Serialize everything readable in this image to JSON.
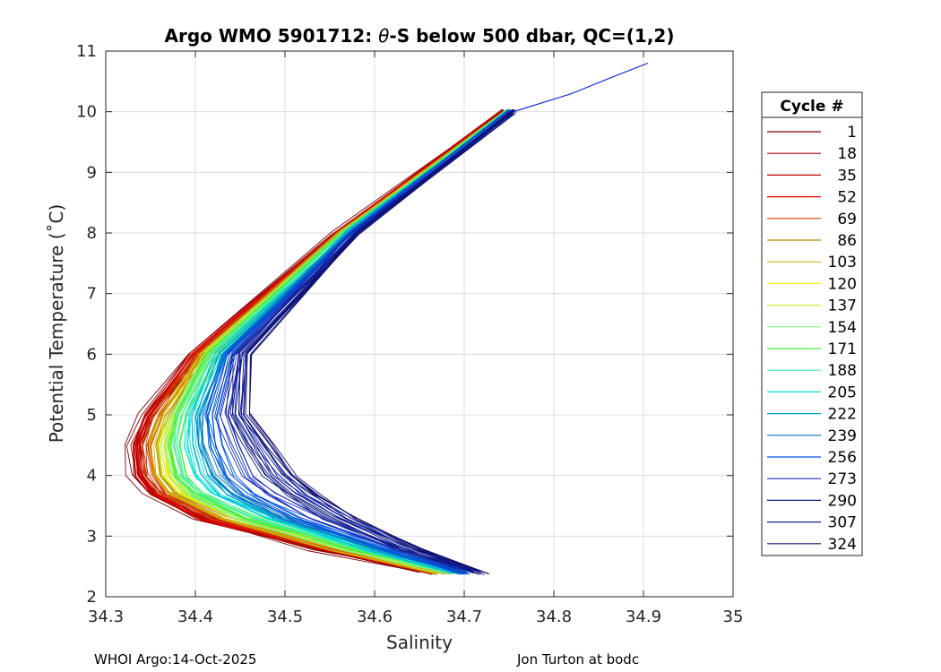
{
  "chart_data": {
    "type": "line",
    "title_parts": {
      "prefix": "Argo WMO 5901712: ",
      "symbol": "θ",
      "suffix": "-S below 500 dbar,  QC=(1,2)"
    },
    "xlabel": "Salinity",
    "ylabel": "Potential Temperature (˚C)",
    "xlim": [
      34.3,
      35.0
    ],
    "ylim": [
      2,
      11
    ],
    "x_ticks": [
      "34.3",
      "34.4",
      "34.5",
      "34.6",
      "34.7",
      "34.8",
      "34.9",
      "35"
    ],
    "y_ticks": [
      "2",
      "3",
      "4",
      "5",
      "6",
      "7",
      "8",
      "9",
      "10",
      "11"
    ],
    "grid": true,
    "legend_position": "right-outside",
    "legend_title": "Cycle #",
    "series": [
      {
        "name": "1",
        "color": "#800000",
        "theta": [
          10.0,
          8.0,
          6.0,
          5.0,
          4.5,
          4.0,
          3.7,
          3.3,
          2.8,
          2.4
        ],
        "salinity": [
          34.745,
          34.555,
          34.4,
          34.345,
          34.33,
          34.333,
          34.35,
          34.405,
          34.53,
          34.66
        ]
      },
      {
        "name": "18",
        "color": "#a00000",
        "theta": [
          10.0,
          8.0,
          6.0,
          5.0,
          4.5,
          4.0,
          3.7,
          3.3,
          2.8,
          2.4
        ],
        "salinity": [
          34.745,
          34.557,
          34.402,
          34.348,
          34.334,
          34.337,
          34.354,
          34.408,
          34.535,
          34.662
        ]
      },
      {
        "name": "35",
        "color": "#c00000",
        "theta": [
          10.0,
          8.0,
          6.0,
          5.0,
          4.5,
          4.0,
          3.7,
          3.3,
          2.8,
          2.4
        ],
        "salinity": [
          34.746,
          34.558,
          34.404,
          34.352,
          34.338,
          34.342,
          34.358,
          34.412,
          34.54,
          34.665
        ]
      },
      {
        "name": "52",
        "color": "#e00000",
        "theta": [
          10.0,
          8.0,
          6.0,
          5.0,
          4.5,
          4.0,
          3.7,
          3.3,
          2.8,
          2.4
        ],
        "salinity": [
          34.746,
          34.56,
          34.406,
          34.356,
          34.343,
          34.348,
          34.363,
          34.418,
          34.545,
          34.668
        ]
      },
      {
        "name": "69",
        "color": "#d04000",
        "theta": [
          10.0,
          8.0,
          6.0,
          5.0,
          4.5,
          4.0,
          3.7,
          3.3,
          2.8,
          2.4
        ],
        "salinity": [
          34.747,
          34.561,
          34.408,
          34.36,
          34.348,
          34.352,
          34.368,
          34.425,
          34.55,
          34.671
        ]
      },
      {
        "name": "86",
        "color": "#c08000",
        "theta": [
          10.0,
          8.0,
          6.0,
          5.0,
          4.5,
          4.0,
          3.7,
          3.3,
          2.8,
          2.4
        ],
        "salinity": [
          34.747,
          34.562,
          34.41,
          34.364,
          34.352,
          34.357,
          34.373,
          34.43,
          34.555,
          34.674
        ]
      },
      {
        "name": "103",
        "color": "#d0b000",
        "theta": [
          10.0,
          8.0,
          6.0,
          5.0,
          4.5,
          4.0,
          3.7,
          3.3,
          2.8,
          2.4
        ],
        "salinity": [
          34.748,
          34.563,
          34.412,
          34.368,
          34.357,
          34.362,
          34.378,
          34.436,
          34.56,
          34.677
        ]
      },
      {
        "name": "120",
        "color": "#f0f000",
        "theta": [
          10.0,
          8.0,
          6.0,
          5.0,
          4.5,
          4.0,
          3.7,
          3.3,
          2.8,
          2.4
        ],
        "salinity": [
          34.748,
          34.564,
          34.414,
          34.372,
          34.362,
          34.367,
          34.384,
          34.442,
          34.565,
          34.68
        ]
      },
      {
        "name": "137",
        "color": "#c0f040",
        "theta": [
          10.0,
          8.0,
          6.0,
          5.0,
          4.5,
          4.0,
          3.7,
          3.3,
          2.8,
          2.4
        ],
        "salinity": [
          34.749,
          34.565,
          34.416,
          34.376,
          34.367,
          34.373,
          34.39,
          34.448,
          34.57,
          34.683
        ]
      },
      {
        "name": "154",
        "color": "#80f080",
        "theta": [
          10.0,
          8.0,
          6.0,
          5.0,
          4.5,
          4.0,
          3.7,
          3.3,
          2.8,
          2.4
        ],
        "salinity": [
          34.749,
          34.566,
          34.418,
          34.38,
          34.372,
          34.379,
          34.396,
          34.455,
          34.575,
          34.686
        ]
      },
      {
        "name": "171",
        "color": "#40f040",
        "theta": [
          10.0,
          8.0,
          6.0,
          5.0,
          4.5,
          4.0,
          3.7,
          3.3,
          2.8,
          2.4
        ],
        "salinity": [
          34.75,
          34.567,
          34.421,
          34.385,
          34.378,
          34.386,
          34.404,
          34.463,
          34.58,
          34.689
        ]
      },
      {
        "name": "188",
        "color": "#40f0a0",
        "theta": [
          10.0,
          8.0,
          6.0,
          5.0,
          4.5,
          4.0,
          3.7,
          3.3,
          2.8,
          2.4
        ],
        "salinity": [
          34.75,
          34.568,
          34.424,
          34.39,
          34.385,
          34.394,
          34.413,
          34.471,
          34.586,
          34.692
        ]
      },
      {
        "name": "205",
        "color": "#00e0e0",
        "theta": [
          10.0,
          8.0,
          6.0,
          5.0,
          4.5,
          4.0,
          3.7,
          3.3,
          2.8,
          2.4
        ],
        "salinity": [
          34.751,
          34.569,
          34.427,
          34.396,
          34.393,
          34.403,
          34.423,
          34.48,
          34.592,
          34.695
        ]
      },
      {
        "name": "222",
        "color": "#00a0d0",
        "theta": [
          10.0,
          8.0,
          6.0,
          5.0,
          4.5,
          4.0,
          3.7,
          3.3,
          2.8,
          2.4
        ],
        "salinity": [
          34.751,
          34.57,
          34.43,
          34.402,
          34.402,
          34.413,
          34.434,
          34.49,
          34.598,
          34.698
        ]
      },
      {
        "name": "239",
        "color": "#0070c0",
        "theta": [
          10.0,
          8.0,
          6.0,
          5.0,
          4.5,
          4.0,
          3.7,
          3.3,
          2.8,
          2.4
        ],
        "salinity": [
          34.752,
          34.572,
          34.434,
          34.41,
          34.413,
          34.426,
          34.447,
          34.502,
          34.605,
          34.701
        ]
      },
      {
        "name": "256",
        "color": "#0050e0",
        "theta": [
          10.0,
          8.0,
          6.0,
          5.0,
          4.5,
          4.0,
          3.7,
          3.3,
          2.8,
          2.4
        ],
        "salinity": [
          34.752,
          34.574,
          34.438,
          34.418,
          34.425,
          34.44,
          34.462,
          34.515,
          34.612,
          34.704
        ]
      },
      {
        "name": "273",
        "color": "#1830c0",
        "theta": [
          10.0,
          8.0,
          6.0,
          5.0,
          4.5,
          4.0,
          3.7,
          3.3,
          2.8,
          2.4
        ],
        "salinity": [
          34.753,
          34.576,
          34.443,
          34.428,
          34.44,
          34.457,
          34.48,
          34.53,
          34.62,
          34.708
        ]
      },
      {
        "name": "290",
        "color": "#101a80",
        "theta": [
          10.0,
          8.0,
          6.0,
          5.0,
          4.5,
          4.0,
          3.7,
          3.3,
          2.8,
          2.4
        ],
        "salinity": [
          34.754,
          34.578,
          34.448,
          34.44,
          34.46,
          34.48,
          34.505,
          34.55,
          34.63,
          34.712
        ]
      },
      {
        "name": "307",
        "color": "#1020a0",
        "theta": [
          10.0,
          8.0,
          6.0,
          5.0,
          4.5,
          4.0,
          3.7,
          3.3,
          2.8,
          2.4
        ],
        "salinity": [
          34.755,
          34.58,
          34.452,
          34.448,
          34.47,
          34.495,
          34.52,
          34.565,
          34.64,
          34.716
        ]
      },
      {
        "name": "324",
        "color": "#101070",
        "theta": [
          10.0,
          8.0,
          6.0,
          5.0,
          4.5,
          4.0,
          3.7,
          3.3,
          2.8,
          2.4
        ],
        "salinity": [
          34.755,
          34.581,
          34.454,
          34.452,
          34.478,
          34.503,
          34.53,
          34.572,
          34.645,
          34.72
        ]
      }
    ],
    "warm_tail": {
      "color": "#0020e0",
      "theta": [
        10.0,
        10.3,
        10.6,
        10.8
      ],
      "salinity": [
        34.755,
        34.82,
        34.87,
        34.905
      ]
    },
    "footer_left": "WHOI Argo:14-Oct-2025",
    "footer_right": "Jon Turton at bodc"
  }
}
